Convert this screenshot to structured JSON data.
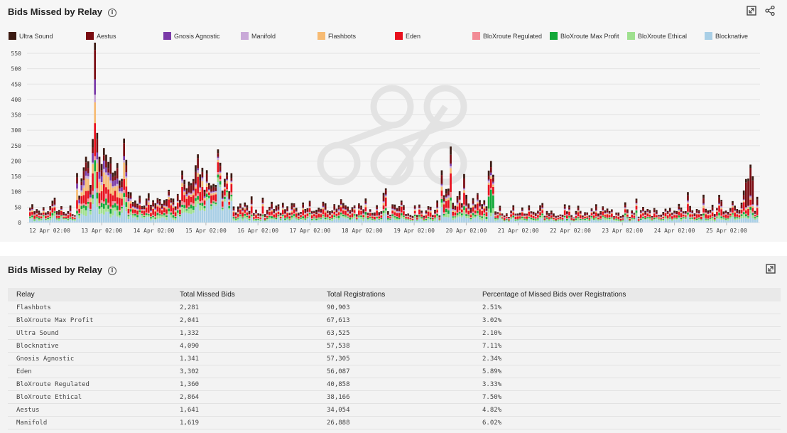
{
  "chart_panel": {
    "title": "Bids Missed by Relay",
    "info_symbol": "i"
  },
  "table_panel": {
    "title": "Bids Missed by Relay",
    "info_symbol": "i"
  },
  "icons": {
    "expand": "expand-icon",
    "share": "share-icon",
    "info": "info-icon"
  },
  "chart_data": {
    "type": "bar",
    "stacked": true,
    "title": "Bids Missed by Relay",
    "xlabel": "",
    "ylabel": "",
    "ylim": [
      0,
      550
    ],
    "yticks": [
      0,
      50,
      100,
      150,
      200,
      250,
      300,
      350,
      400,
      450,
      500,
      550
    ],
    "grid": true,
    "legend_position": "top",
    "x_tick_labels": [
      "12 Apr 02:00",
      "13 Apr 02:00",
      "14 Apr 02:00",
      "15 Apr 02:00",
      "16 Apr 02:00",
      "17 Apr 02:00",
      "18 Apr 02:00",
      "19 Apr 02:00",
      "20 Apr 02:00",
      "21 Apr 02:00",
      "22 Apr 02:00",
      "23 Apr 02:00",
      "24 Apr 02:00",
      "25 Apr 02:00"
    ],
    "series_order": [
      "Blocknative",
      "BloXroute Ethical",
      "BloXroute Max Profit",
      "BloXroute Regulated",
      "Eden",
      "Flashbots",
      "Manifold",
      "Gnosis Agnostic",
      "Aestus",
      "Ultra Sound"
    ],
    "series": [
      {
        "name": "Ultra Sound",
        "color": "#3b1a12"
      },
      {
        "name": "Aestus",
        "color": "#7a0c12"
      },
      {
        "name": "Gnosis Agnostic",
        "color": "#7a3aa8"
      },
      {
        "name": "Manifold",
        "color": "#c9a9d8"
      },
      {
        "name": "Flashbots",
        "color": "#f7bb73"
      },
      {
        "name": "Eden",
        "color": "#e8101d"
      },
      {
        "name": "BloXroute Regulated",
        "color": "#f28c96"
      },
      {
        "name": "BloXroute Max Profit",
        "color": "#12a838"
      },
      {
        "name": "BloXroute Ethical",
        "color": "#9fe08f"
      },
      {
        "name": "Blocknative",
        "color": "#a9cfe6"
      }
    ],
    "daily_profile": [
      {
        "day": "12 Apr",
        "typical_total": 45,
        "peak_total": 100
      },
      {
        "day": "13 Apr",
        "typical_total": 190,
        "peak_total": 510
      },
      {
        "day": "14 Apr",
        "typical_total": 70,
        "peak_total": 115
      },
      {
        "day": "15 Apr",
        "typical_total": 150,
        "peak_total": 180
      },
      {
        "day": "16 Apr",
        "typical_total": 50,
        "peak_total": 100
      },
      {
        "day": "17 Apr",
        "typical_total": 50,
        "peak_total": 100
      },
      {
        "day": "18 Apr",
        "typical_total": 45,
        "peak_total": 95
      },
      {
        "day": "19 Apr",
        "typical_total": 40,
        "peak_total": 70
      },
      {
        "day": "20 Apr",
        "typical_total": 80,
        "peak_total": 215
      },
      {
        "day": "21 Apr",
        "typical_total": 40,
        "peak_total": 110
      },
      {
        "day": "22 Apr",
        "typical_total": 35,
        "peak_total": 70
      },
      {
        "day": "23 Apr",
        "typical_total": 35,
        "peak_total": 80
      },
      {
        "day": "24 Apr",
        "typical_total": 40,
        "peak_total": 100
      },
      {
        "day": "25 Apr",
        "typical_total": 60,
        "peak_total": 165
      }
    ]
  },
  "table": {
    "columns": [
      "Relay",
      "Total Missed Bids",
      "Total Registrations",
      "Percentage of Missed Bids over Registrations"
    ],
    "rows": [
      [
        "Flashbots",
        "2,281",
        "90,903",
        "2.51%"
      ],
      [
        "BloXroute Max Profit",
        "2,041",
        "67,613",
        "3.02%"
      ],
      [
        "Ultra Sound",
        "1,332",
        "63,525",
        "2.10%"
      ],
      [
        "Blocknative",
        "4,090",
        "57,538",
        "7.11%"
      ],
      [
        "Gnosis Agnostic",
        "1,341",
        "57,305",
        "2.34%"
      ],
      [
        "Eden",
        "3,302",
        "56,087",
        "5.89%"
      ],
      [
        "BloXroute Regulated",
        "1,360",
        "40,858",
        "3.33%"
      ],
      [
        "BloXroute Ethical",
        "2,864",
        "38,166",
        "7.50%"
      ],
      [
        "Aestus",
        "1,641",
        "34,054",
        "4.82%"
      ],
      [
        "Manifold",
        "1,619",
        "26,888",
        "6.02%"
      ]
    ]
  }
}
